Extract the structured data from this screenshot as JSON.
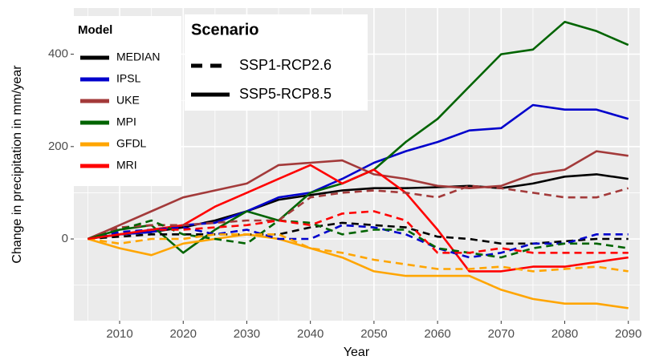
{
  "chart_data": {
    "type": "line",
    "x_label": "Year",
    "y_label": "Change in precipitation in mm/year",
    "model_legend_title": "Model",
    "scenario_legend_title": "Scenario",
    "x": [
      2005,
      2010,
      2015,
      2020,
      2025,
      2030,
      2035,
      2040,
      2045,
      2050,
      2055,
      2060,
      2065,
      2070,
      2075,
      2080,
      2085,
      2090
    ],
    "xlim": [
      2002.8,
      2091.8
    ],
    "xticks": [
      2010,
      2020,
      2030,
      2040,
      2050,
      2060,
      2070,
      2080,
      2090
    ],
    "minor_xticks": [
      2005,
      2015,
      2025,
      2035,
      2045,
      2055,
      2065,
      2075,
      2085
    ],
    "ylim": [
      -177,
      500
    ],
    "yticks": [
      0,
      200,
      400
    ],
    "minor_yticks": [
      -100,
      100,
      300
    ],
    "grid": true,
    "series": [
      {
        "name": "MEDIAN",
        "scenario": "SSP5-RCP8.5",
        "linestyle": "solid",
        "color": "#000000",
        "values": [
          0,
          10,
          15,
          25,
          40,
          60,
          85,
          95,
          105,
          110,
          110,
          112,
          115,
          110,
          120,
          135,
          140,
          130
        ]
      },
      {
        "name": "IPSL",
        "scenario": "SSP5-RCP8.5",
        "linestyle": "solid",
        "color": "#0000cc",
        "values": [
          0,
          10,
          15,
          30,
          35,
          60,
          90,
          100,
          130,
          165,
          190,
          210,
          235,
          240,
          290,
          280,
          280,
          260
        ]
      },
      {
        "name": "UKE",
        "scenario": "SSP5-RCP8.5",
        "linestyle": "solid",
        "color": "#a33a3a",
        "values": [
          0,
          30,
          60,
          90,
          105,
          120,
          160,
          165,
          170,
          140,
          130,
          115,
          110,
          115,
          140,
          150,
          190,
          180
        ]
      },
      {
        "name": "MPI",
        "scenario": "SSP5-RCP8.5",
        "linestyle": "solid",
        "color": "#006400",
        "values": [
          0,
          20,
          30,
          -30,
          20,
          60,
          40,
          100,
          120,
          150,
          210,
          260,
          330,
          400,
          410,
          470,
          450,
          420
        ]
      },
      {
        "name": "GFDL",
        "scenario": "SSP5-RCP8.5",
        "linestyle": "solid",
        "color": "#ffa500",
        "values": [
          0,
          -20,
          -35,
          -10,
          0,
          10,
          0,
          -20,
          -40,
          -70,
          -80,
          -80,
          -80,
          -110,
          -130,
          -140,
          -140,
          -150
        ]
      },
      {
        "name": "MRI",
        "scenario": "SSP5-RCP8.5",
        "linestyle": "solid",
        "color": "#ff0000",
        "values": [
          0,
          10,
          20,
          30,
          70,
          100,
          130,
          160,
          120,
          150,
          100,
          20,
          -70,
          -70,
          -60,
          -60,
          -50,
          -40
        ]
      },
      {
        "name": "MEDIAN",
        "scenario": "SSP1-RCP2.6",
        "linestyle": "dashed",
        "color": "#000000",
        "values": [
          0,
          5,
          10,
          10,
          10,
          10,
          10,
          25,
          35,
          30,
          25,
          5,
          0,
          -10,
          -10,
          -5,
          0,
          0
        ]
      },
      {
        "name": "IPSL",
        "scenario": "SSP1-RCP2.6",
        "linestyle": "dashed",
        "color": "#0000cc",
        "values": [
          0,
          15,
          20,
          25,
          10,
          20,
          0,
          0,
          30,
          25,
          10,
          -20,
          -40,
          -30,
          -10,
          -10,
          10,
          10
        ]
      },
      {
        "name": "UKE",
        "scenario": "SSP1-RCP2.6",
        "linestyle": "dashed",
        "color": "#a33a3a",
        "values": [
          0,
          25,
          30,
          30,
          35,
          40,
          40,
          90,
          100,
          105,
          100,
          90,
          115,
          110,
          100,
          90,
          90,
          110
        ]
      },
      {
        "name": "MPI",
        "scenario": "SSP1-RCP2.6",
        "linestyle": "dashed",
        "color": "#006400",
        "values": [
          0,
          20,
          40,
          10,
          0,
          -10,
          40,
          35,
          10,
          20,
          20,
          -20,
          -30,
          -40,
          -20,
          -10,
          -10,
          -20
        ]
      },
      {
        "name": "GFDL",
        "scenario": "SSP1-RCP2.6",
        "linestyle": "dashed",
        "color": "#ffa500",
        "values": [
          0,
          -10,
          0,
          0,
          10,
          10,
          10,
          -20,
          -30,
          -45,
          -55,
          -65,
          -65,
          -60,
          -70,
          -65,
          -60,
          -70
        ]
      },
      {
        "name": "MRI",
        "scenario": "SSP1-RCP2.6",
        "linestyle": "dashed",
        "color": "#ff0000",
        "values": [
          0,
          10,
          20,
          20,
          25,
          30,
          40,
          30,
          55,
          60,
          40,
          -30,
          -30,
          -20,
          -30,
          -30,
          -30,
          -30
        ]
      }
    ]
  }
}
